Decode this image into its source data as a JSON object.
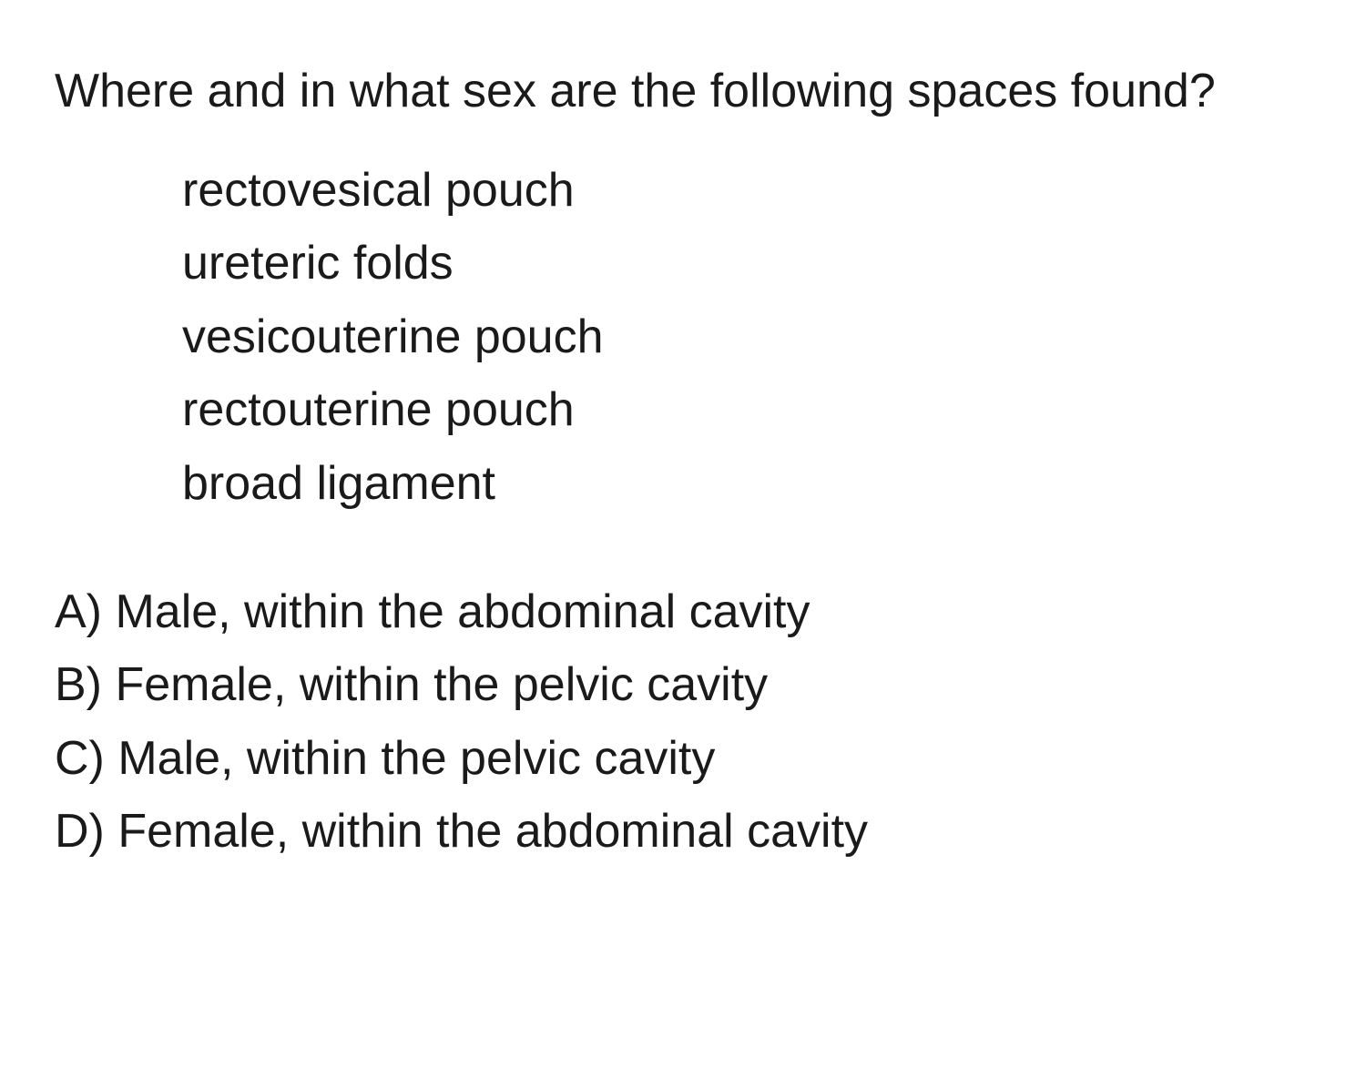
{
  "document": {
    "background_color": "#ffffff",
    "text_color": "#1a1a1a",
    "font_family": "sans-serif",
    "base_font_size_pt": 39,
    "line_height": 1.55
  },
  "question": {
    "stem": "Where and in what sex are the following spaces found?",
    "sub_items": [
      "rectovesical pouch",
      "ureteric folds",
      "vesicouterine pouch",
      "rectouterine pouch",
      "broad ligament"
    ],
    "options": [
      {
        "letter": "A) ",
        "text": "Male, within the abdominal cavity"
      },
      {
        "letter": "B) ",
        "text": "Female, within the pelvic cavity"
      },
      {
        "letter": "C) ",
        "text": "Male, within the pelvic cavity"
      },
      {
        "letter": "D) ",
        "text": "Female, within the abdominal cavity"
      }
    ]
  }
}
